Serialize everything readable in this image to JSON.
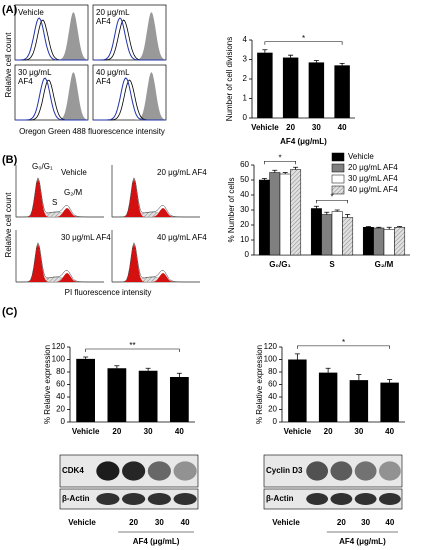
{
  "panel_labels": [
    "(A)",
    "(B)",
    "(C)"
  ],
  "flow_a": {
    "labels": [
      [
        "Vehicle"
      ],
      [
        "20 μg/mL",
        "AF4"
      ],
      [
        "30 μg/mL",
        "AF4"
      ],
      [
        "40 μg/mL",
        "AF4"
      ]
    ],
    "ylabel": "Relative cell count",
    "xlabel": "Oregon Green 488 fluorescence intensity"
  },
  "flow_b": {
    "labels": [
      "Vehicle",
      "20 μg/mL AF4",
      "30 μg/mL AF4",
      "40 μg/mL AF4"
    ],
    "phases": [
      "G₀/G₁",
      "S",
      "G₂/M"
    ],
    "ylabel": "Relative cell count",
    "xlabel": "PI  fluorescence intensity"
  },
  "blots": [
    {
      "bands": [
        "CDK4",
        "β-Actin"
      ]
    },
    {
      "bands": [
        "Cyclin D3",
        "β-Actin"
      ]
    }
  ],
  "chart_data": [
    {
      "type": "bar",
      "categories": [
        "Vehicle",
        "20",
        "30",
        "40"
      ],
      "values": [
        3.35,
        3.1,
        2.85,
        2.7
      ],
      "errors": [
        0.15,
        0.12,
        0.1,
        0.1
      ],
      "color": "#000000",
      "ylim": [
        0,
        4
      ],
      "yticks": [
        0,
        1,
        2,
        3,
        4
      ],
      "ylabel": "Number of cell divisions",
      "xlabel": "AF4 (μg/mL)",
      "annotations": [
        "*"
      ]
    },
    {
      "type": "grouped_bar",
      "categories": [
        "G₀/G₁",
        "S",
        "G₂/M"
      ],
      "series": [
        {
          "name": "Vehicle",
          "color": "#000000",
          "values": [
            50,
            31,
            18.5
          ],
          "errors": [
            1,
            1.5,
            0.5
          ]
        },
        {
          "name": "20 μg/mL AF4",
          "color": "#808080",
          "values": [
            55,
            27,
            18
          ],
          "errors": [
            1.5,
            1.5,
            0.5
          ]
        },
        {
          "name": "30 μg/mL AF4",
          "color": "#ffffff",
          "values": [
            54,
            29,
            17
          ],
          "errors": [
            1,
            1,
            1.5
          ]
        },
        {
          "name": "40 μg/mL AF4",
          "color": "#d9d9d9",
          "values": [
            57,
            25,
            18.5
          ],
          "errors": [
            1.5,
            2,
            0.5
          ]
        }
      ],
      "ylim": [
        0,
        60
      ],
      "yticks": [
        0,
        10,
        20,
        30,
        40,
        50,
        60
      ],
      "ylabel": "% Number of cells",
      "annotations": [
        "*",
        "*"
      ],
      "legend": "top-right"
    },
    {
      "type": "bar",
      "categories": [
        "Vehicle",
        "20",
        "30",
        "40"
      ],
      "values": [
        101,
        86,
        82,
        72
      ],
      "errors": [
        3,
        4,
        4,
        6
      ],
      "color": "#000000",
      "ylim": [
        0,
        120
      ],
      "yticks": [
        0,
        20,
        40,
        60,
        80,
        100,
        120
      ],
      "ylabel": "% Relative expression",
      "xlabel": "AF4 (μg/mL)",
      "annotations": [
        "**"
      ]
    },
    {
      "type": "bar",
      "categories": [
        "Vehicle",
        "20",
        "30",
        "40"
      ],
      "values": [
        100,
        79,
        67,
        63
      ],
      "errors": [
        9,
        7,
        9,
        5
      ],
      "color": "#000000",
      "ylim": [
        0,
        120
      ],
      "yticks": [
        0,
        20,
        40,
        60,
        80,
        100,
        120
      ],
      "ylabel": "% Relative expression",
      "xlabel": "AF4 (μg/mL)",
      "annotations": [
        "*"
      ]
    }
  ]
}
